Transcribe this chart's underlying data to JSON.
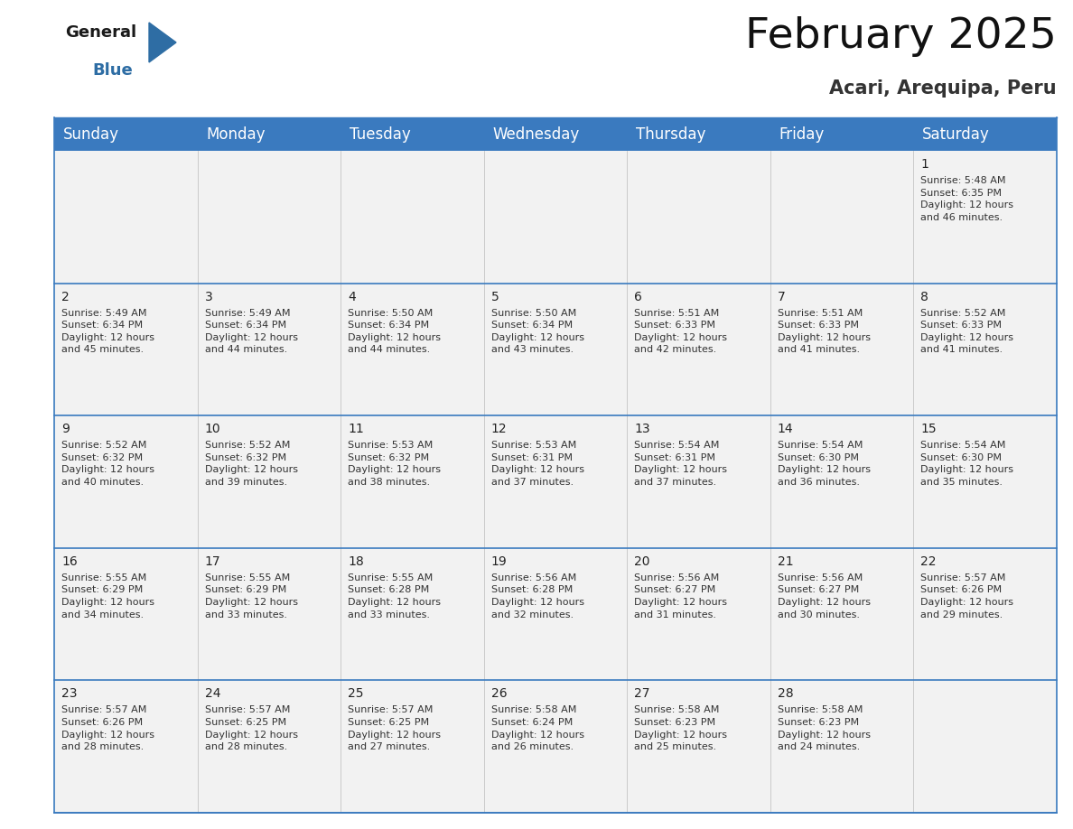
{
  "title": "February 2025",
  "subtitle": "Acari, Arequipa, Peru",
  "header_color": "#3a7abf",
  "header_text_color": "#ffffff",
  "cell_bg": "#f2f2f2",
  "border_color": "#3a7abf",
  "line_color": "#3a7abf",
  "day_names": [
    "Sunday",
    "Monday",
    "Tuesday",
    "Wednesday",
    "Thursday",
    "Friday",
    "Saturday"
  ],
  "title_fontsize": 34,
  "subtitle_fontsize": 15,
  "header_fontsize": 12,
  "day_num_fontsize": 10,
  "cell_text_fontsize": 8,
  "calendar": [
    [
      null,
      null,
      null,
      null,
      null,
      null,
      {
        "day": 1,
        "sunrise": "5:48 AM",
        "sunset": "6:35 PM",
        "daylight": "12 hours\nand 46 minutes."
      }
    ],
    [
      {
        "day": 2,
        "sunrise": "5:49 AM",
        "sunset": "6:34 PM",
        "daylight": "12 hours\nand 45 minutes."
      },
      {
        "day": 3,
        "sunrise": "5:49 AM",
        "sunset": "6:34 PM",
        "daylight": "12 hours\nand 44 minutes."
      },
      {
        "day": 4,
        "sunrise": "5:50 AM",
        "sunset": "6:34 PM",
        "daylight": "12 hours\nand 44 minutes."
      },
      {
        "day": 5,
        "sunrise": "5:50 AM",
        "sunset": "6:34 PM",
        "daylight": "12 hours\nand 43 minutes."
      },
      {
        "day": 6,
        "sunrise": "5:51 AM",
        "sunset": "6:33 PM",
        "daylight": "12 hours\nand 42 minutes."
      },
      {
        "day": 7,
        "sunrise": "5:51 AM",
        "sunset": "6:33 PM",
        "daylight": "12 hours\nand 41 minutes."
      },
      {
        "day": 8,
        "sunrise": "5:52 AM",
        "sunset": "6:33 PM",
        "daylight": "12 hours\nand 41 minutes."
      }
    ],
    [
      {
        "day": 9,
        "sunrise": "5:52 AM",
        "sunset": "6:32 PM",
        "daylight": "12 hours\nand 40 minutes."
      },
      {
        "day": 10,
        "sunrise": "5:52 AM",
        "sunset": "6:32 PM",
        "daylight": "12 hours\nand 39 minutes."
      },
      {
        "day": 11,
        "sunrise": "5:53 AM",
        "sunset": "6:32 PM",
        "daylight": "12 hours\nand 38 minutes."
      },
      {
        "day": 12,
        "sunrise": "5:53 AM",
        "sunset": "6:31 PM",
        "daylight": "12 hours\nand 37 minutes."
      },
      {
        "day": 13,
        "sunrise": "5:54 AM",
        "sunset": "6:31 PM",
        "daylight": "12 hours\nand 37 minutes."
      },
      {
        "day": 14,
        "sunrise": "5:54 AM",
        "sunset": "6:30 PM",
        "daylight": "12 hours\nand 36 minutes."
      },
      {
        "day": 15,
        "sunrise": "5:54 AM",
        "sunset": "6:30 PM",
        "daylight": "12 hours\nand 35 minutes."
      }
    ],
    [
      {
        "day": 16,
        "sunrise": "5:55 AM",
        "sunset": "6:29 PM",
        "daylight": "12 hours\nand 34 minutes."
      },
      {
        "day": 17,
        "sunrise": "5:55 AM",
        "sunset": "6:29 PM",
        "daylight": "12 hours\nand 33 minutes."
      },
      {
        "day": 18,
        "sunrise": "5:55 AM",
        "sunset": "6:28 PM",
        "daylight": "12 hours\nand 33 minutes."
      },
      {
        "day": 19,
        "sunrise": "5:56 AM",
        "sunset": "6:28 PM",
        "daylight": "12 hours\nand 32 minutes."
      },
      {
        "day": 20,
        "sunrise": "5:56 AM",
        "sunset": "6:27 PM",
        "daylight": "12 hours\nand 31 minutes."
      },
      {
        "day": 21,
        "sunrise": "5:56 AM",
        "sunset": "6:27 PM",
        "daylight": "12 hours\nand 30 minutes."
      },
      {
        "day": 22,
        "sunrise": "5:57 AM",
        "sunset": "6:26 PM",
        "daylight": "12 hours\nand 29 minutes."
      }
    ],
    [
      {
        "day": 23,
        "sunrise": "5:57 AM",
        "sunset": "6:26 PM",
        "daylight": "12 hours\nand 28 minutes."
      },
      {
        "day": 24,
        "sunrise": "5:57 AM",
        "sunset": "6:25 PM",
        "daylight": "12 hours\nand 28 minutes."
      },
      {
        "day": 25,
        "sunrise": "5:57 AM",
        "sunset": "6:25 PM",
        "daylight": "12 hours\nand 27 minutes."
      },
      {
        "day": 26,
        "sunrise": "5:58 AM",
        "sunset": "6:24 PM",
        "daylight": "12 hours\nand 26 minutes."
      },
      {
        "day": 27,
        "sunrise": "5:58 AM",
        "sunset": "6:23 PM",
        "daylight": "12 hours\nand 25 minutes."
      },
      {
        "day": 28,
        "sunrise": "5:58 AM",
        "sunset": "6:23 PM",
        "daylight": "12 hours\nand 24 minutes."
      },
      null
    ]
  ]
}
